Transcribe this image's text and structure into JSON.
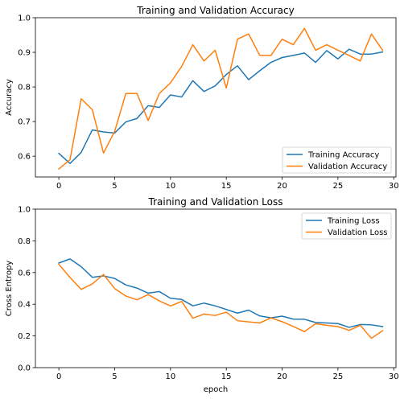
{
  "chart_data": [
    {
      "type": "line",
      "title": "Training and Validation Accuracy",
      "xlabel": "",
      "ylabel": "Accuracy",
      "xlim": [
        -2.1,
        30.2
      ],
      "ylim": [
        0.54,
        1.0
      ],
      "xticks": [
        0,
        5,
        10,
        15,
        20,
        25,
        30
      ],
      "yticks": [
        0.6,
        0.7,
        0.8,
        0.9,
        1.0
      ],
      "ytick_format": 1,
      "legend": "lower right",
      "grid": false,
      "x": [
        0,
        1,
        2,
        3,
        4,
        5,
        6,
        7,
        8,
        9,
        10,
        11,
        12,
        13,
        14,
        15,
        16,
        17,
        18,
        19,
        20,
        21,
        22,
        23,
        24,
        25,
        26,
        27,
        28,
        29
      ],
      "series": [
        {
          "name": "Training Accuracy",
          "color": "#1f77b4",
          "values": [
            0.608,
            0.579,
            0.611,
            0.676,
            0.67,
            0.667,
            0.699,
            0.709,
            0.746,
            0.741,
            0.777,
            0.771,
            0.818,
            0.787,
            0.803,
            0.836,
            0.861,
            0.821,
            0.847,
            0.871,
            0.885,
            0.891,
            0.898,
            0.871,
            0.905,
            0.881,
            0.909,
            0.895,
            0.895,
            0.901
          ]
        },
        {
          "name": "Validation Accuracy",
          "color": "#ff7f0e",
          "values": [
            0.563,
            0.59,
            0.766,
            0.734,
            0.609,
            0.672,
            0.781,
            0.781,
            0.703,
            0.781,
            0.812,
            0.859,
            0.922,
            0.875,
            0.906,
            0.797,
            0.938,
            0.953,
            0.891,
            0.891,
            0.938,
            0.922,
            0.969,
            0.906,
            0.922,
            0.906,
            0.891,
            0.875,
            0.953,
            0.906
          ]
        }
      ]
    },
    {
      "type": "line",
      "title": "Training and Validation Loss",
      "xlabel": "epoch",
      "ylabel": "Cross Entropy",
      "xlim": [
        -2.1,
        30.2
      ],
      "ylim": [
        0.0,
        1.0
      ],
      "xticks": [
        0,
        5,
        10,
        15,
        20,
        25,
        30
      ],
      "yticks": [
        0.0,
        0.2,
        0.4,
        0.6,
        0.8,
        1.0
      ],
      "ytick_format": 1,
      "legend": "upper right",
      "grid": false,
      "x": [
        0,
        1,
        2,
        3,
        4,
        5,
        6,
        7,
        8,
        9,
        10,
        11,
        12,
        13,
        14,
        15,
        16,
        17,
        18,
        19,
        20,
        21,
        22,
        23,
        24,
        25,
        26,
        27,
        28,
        29
      ],
      "series": [
        {
          "name": "Training Loss",
          "color": "#1f77b4",
          "values": [
            0.66,
            0.686,
            0.637,
            0.57,
            0.579,
            0.563,
            0.522,
            0.502,
            0.47,
            0.48,
            0.438,
            0.43,
            0.39,
            0.407,
            0.39,
            0.367,
            0.344,
            0.363,
            0.326,
            0.314,
            0.325,
            0.306,
            0.305,
            0.285,
            0.282,
            0.278,
            0.254,
            0.272,
            0.27,
            0.259
          ]
        },
        {
          "name": "Validation Loss",
          "color": "#ff7f0e",
          "values": [
            0.652,
            0.569,
            0.494,
            0.528,
            0.588,
            0.499,
            0.452,
            0.428,
            0.461,
            0.421,
            0.389,
            0.418,
            0.312,
            0.338,
            0.329,
            0.35,
            0.296,
            0.289,
            0.282,
            0.314,
            0.29,
            0.26,
            0.227,
            0.277,
            0.267,
            0.259,
            0.235,
            0.267,
            0.185,
            0.233
          ]
        }
      ]
    }
  ]
}
